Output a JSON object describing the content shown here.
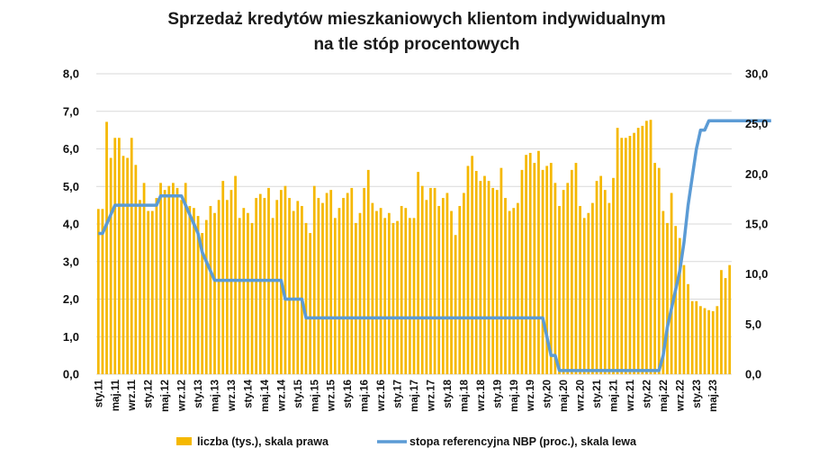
{
  "chart_data": {
    "type": "bar+line",
    "title_lines": [
      "Sprzedaż kredytów mieszkaniowych klientom indywidualnym",
      "na tle stóp procentowych"
    ],
    "left_axis": {
      "min": 0,
      "max": 8,
      "ticks": [
        "0,0",
        "1,0",
        "2,0",
        "3,0",
        "4,0",
        "5,0",
        "6,0",
        "7,0",
        "8,0"
      ]
    },
    "right_axis": {
      "min": 0,
      "max": 30,
      "ticks": [
        "0,0",
        "5,0",
        "10,0",
        "15,0",
        "20,0",
        "25,0",
        "30,0"
      ]
    },
    "grid": true,
    "legend_position": "bottom",
    "colors": {
      "bar": "#F5B800",
      "line": "#5B9BD5",
      "grid": "#d9d9d9"
    },
    "x_labels": [
      "sty.11",
      "maj.11",
      "wrz.11",
      "sty.12",
      "maj.12",
      "wrz.12",
      "sty.13",
      "maj.13",
      "wrz.13",
      "sty.14",
      "maj.14",
      "wrz.14",
      "sty.15",
      "maj.15",
      "wrz.15",
      "sty.16",
      "maj.16",
      "wrz.16",
      "sty.17",
      "maj.17",
      "wrz.17",
      "sty.18",
      "maj.18",
      "wrz.18",
      "sty.19",
      "maj.19",
      "wrz.19",
      "sty.20",
      "maj.20",
      "wrz.20",
      "sty.21",
      "maj.21",
      "wrz.21",
      "sty.22",
      "maj.22",
      "wrz.22",
      "sty.23",
      "maj.23"
    ],
    "series": [
      {
        "name": "liczba (tys.), skala prawa",
        "kind": "bar",
        "axis": "right",
        "values": [
          16.5,
          16.5,
          25.2,
          21.6,
          23.6,
          23.6,
          21.8,
          21.6,
          23.6,
          20.9,
          17.4,
          19.1,
          16.3,
          16.3,
          17.6,
          19.1,
          18.4,
          18.8,
          19.1,
          18.6,
          17.4,
          19.1,
          16.8,
          16.6,
          15.8,
          14.1,
          15.4,
          16.8,
          16.1,
          17.4,
          19.3,
          17.4,
          18.4,
          19.8,
          15.6,
          16.6,
          16.1,
          15.1,
          17.6,
          18.0,
          17.6,
          18.6,
          15.6,
          17.4,
          18.4,
          18.8,
          17.6,
          16.3,
          17.3,
          16.8,
          15.1,
          14.1,
          18.8,
          17.6,
          17.1,
          18.1,
          18.4,
          15.6,
          16.6,
          17.6,
          18.1,
          18.6,
          15.1,
          16.1,
          18.6,
          20.4,
          17.1,
          16.3,
          16.6,
          15.6,
          16.1,
          15.1,
          15.3,
          16.8,
          16.6,
          15.6,
          15.6,
          20.2,
          18.8,
          17.4,
          18.6,
          18.6,
          16.8,
          17.6,
          18.1,
          16.3,
          13.9,
          16.8,
          18.1,
          20.8,
          21.8,
          20.3,
          19.3,
          19.8,
          19.3,
          18.6,
          18.4,
          20.6,
          17.6,
          16.3,
          16.6,
          17.1,
          20.4,
          21.9,
          22.1,
          21.1,
          22.3,
          20.4,
          20.8,
          21.1,
          19.1,
          16.8,
          18.4,
          19.1,
          20.4,
          21.1,
          16.8,
          15.6,
          16.1,
          17.1,
          19.3,
          19.8,
          18.4,
          17.1,
          19.6,
          24.6,
          23.6,
          23.6,
          23.8,
          24.1,
          24.6,
          24.8,
          25.3,
          25.4,
          21.1,
          20.6,
          16.3,
          15.1,
          18.1,
          14.8,
          13.6,
          10.9,
          9.0,
          7.3,
          7.3,
          6.8,
          6.6,
          6.4,
          6.3,
          6.8,
          10.4,
          9.6,
          10.9
        ]
      },
      {
        "name": "stopa referencyjna NBP (proc.), skala lewa",
        "kind": "line",
        "axis": "left",
        "values": [
          3.75,
          3.75,
          4.0,
          4.25,
          4.5,
          4.5,
          4.5,
          4.5,
          4.5,
          4.5,
          4.5,
          4.5,
          4.5,
          4.5,
          4.5,
          4.75,
          4.75,
          4.75,
          4.75,
          4.75,
          4.75,
          4.5,
          4.25,
          4.0,
          3.75,
          3.25,
          3.0,
          2.75,
          2.5,
          2.5,
          2.5,
          2.5,
          2.5,
          2.5,
          2.5,
          2.5,
          2.5,
          2.5,
          2.5,
          2.5,
          2.5,
          2.5,
          2.5,
          2.5,
          2.5,
          2.0,
          2.0,
          2.0,
          2.0,
          2.0,
          1.5,
          1.5,
          1.5,
          1.5,
          1.5,
          1.5,
          1.5,
          1.5,
          1.5,
          1.5,
          1.5,
          1.5,
          1.5,
          1.5,
          1.5,
          1.5,
          1.5,
          1.5,
          1.5,
          1.5,
          1.5,
          1.5,
          1.5,
          1.5,
          1.5,
          1.5,
          1.5,
          1.5,
          1.5,
          1.5,
          1.5,
          1.5,
          1.5,
          1.5,
          1.5,
          1.5,
          1.5,
          1.5,
          1.5,
          1.5,
          1.5,
          1.5,
          1.5,
          1.5,
          1.5,
          1.5,
          1.5,
          1.5,
          1.5,
          1.5,
          1.5,
          1.5,
          1.5,
          1.5,
          1.5,
          1.5,
          1.5,
          1.5,
          1.0,
          0.5,
          0.5,
          0.1,
          0.1,
          0.1,
          0.1,
          0.1,
          0.1,
          0.1,
          0.1,
          0.1,
          0.1,
          0.1,
          0.1,
          0.1,
          0.1,
          0.1,
          0.1,
          0.1,
          0.1,
          0.1,
          0.1,
          0.1,
          0.1,
          0.1,
          0.1,
          0.1,
          0.5,
          1.25,
          1.75,
          2.25,
          2.75,
          3.5,
          4.5,
          5.25,
          6.0,
          6.5,
          6.5,
          6.75,
          6.75,
          6.75,
          6.75,
          6.75,
          6.75,
          6.75,
          6.75,
          6.75,
          6.75,
          6.75,
          6.75,
          6.75,
          6.75,
          6.75,
          6.75
        ]
      }
    ]
  }
}
